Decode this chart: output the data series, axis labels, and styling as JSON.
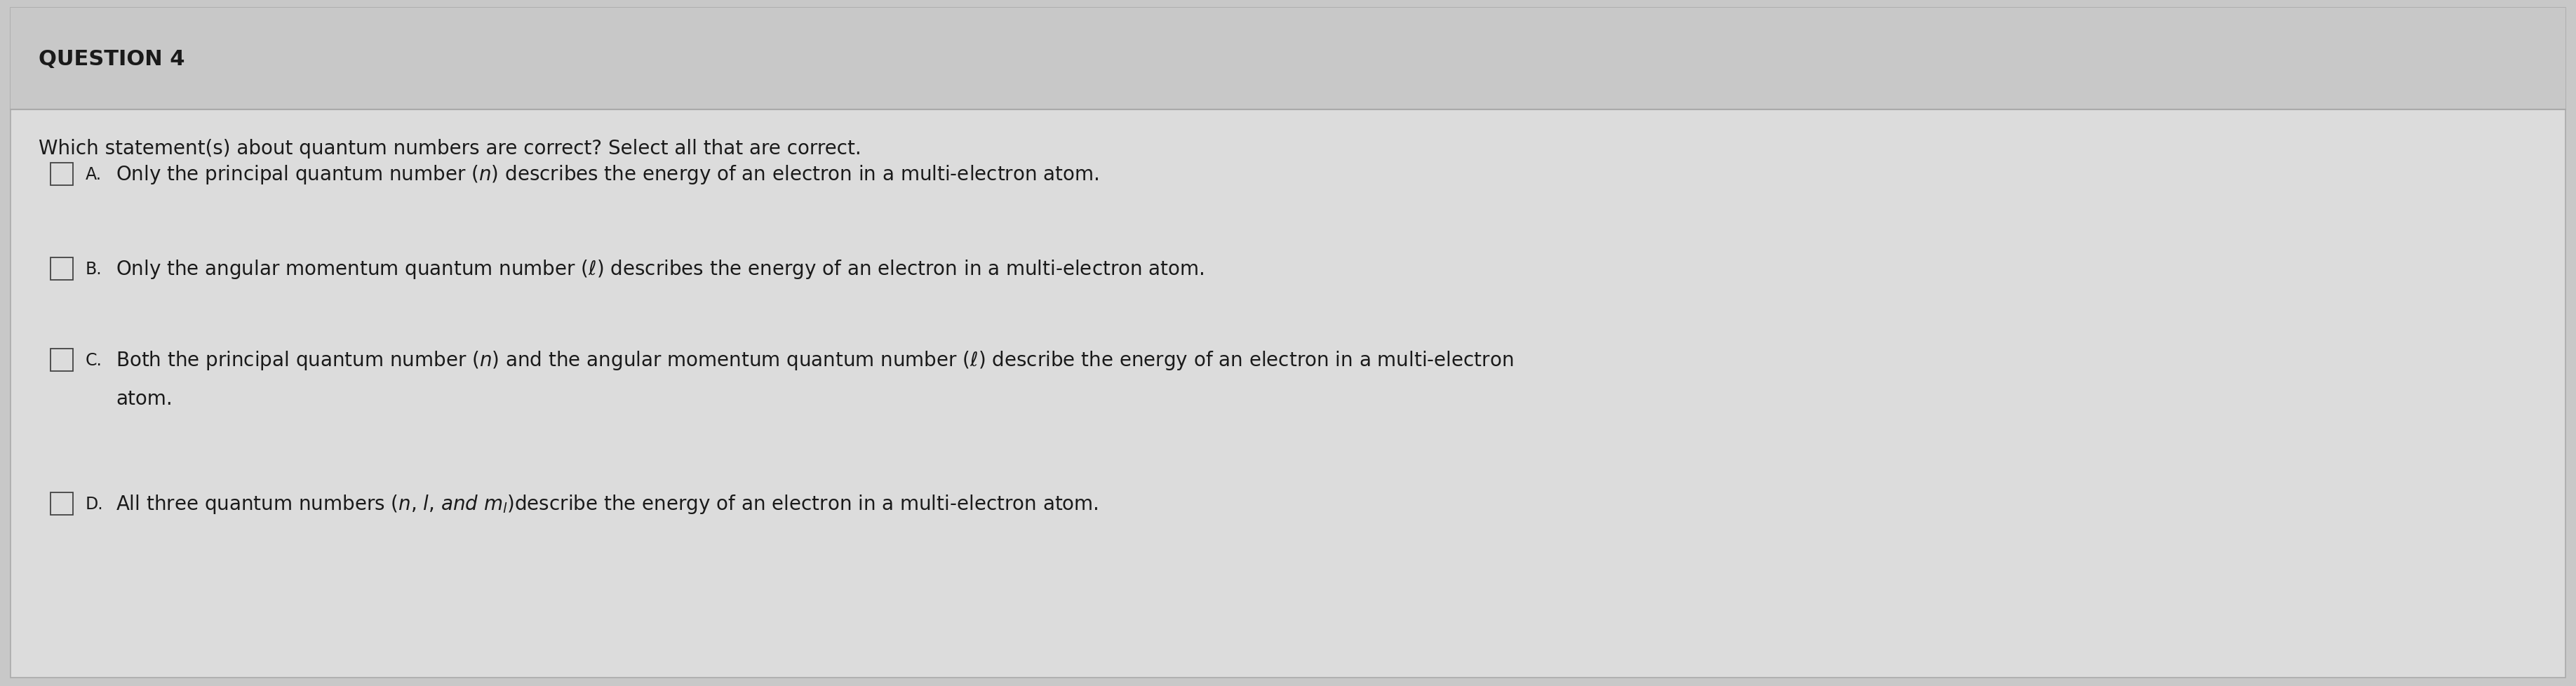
{
  "background_color": "#c8c8c8",
  "content_bg": "#dcdcdc",
  "header_bg": "#c8c8c8",
  "title": "QUESTION 4",
  "title_fontsize": 22,
  "title_bold": true,
  "question_text": "Which statement(s) about quantum numbers are correct? Select all that are correct.",
  "question_fontsize": 20,
  "text_color": "#1a1a1a",
  "checkbox_color": "#444444",
  "font_size_options": 20,
  "label_fontsize": 17,
  "header_line_color": "#aaaaaa",
  "border_color": "#aaaaaa",
  "option_A_line1": "Only the principal quantum number ($n$) describes the energy of an electron in a multi-electron atom.",
  "option_B_line1": "Only the angular momentum quantum number ($\\ell$) describes the energy of an electron in a multi-electron atom.",
  "option_C_line1": "Both the principal quantum number ($n$) and the angular momentum quantum number ($\\ell$) describe the energy of an electron in a multi-electron",
  "option_C_line2": "atom.",
  "option_D_line1": "All three quantum numbers ($n$, $l$, $and$ $m_l$)describe the energy of an electron in a multi-electron atom.",
  "underline_color": "#333333"
}
